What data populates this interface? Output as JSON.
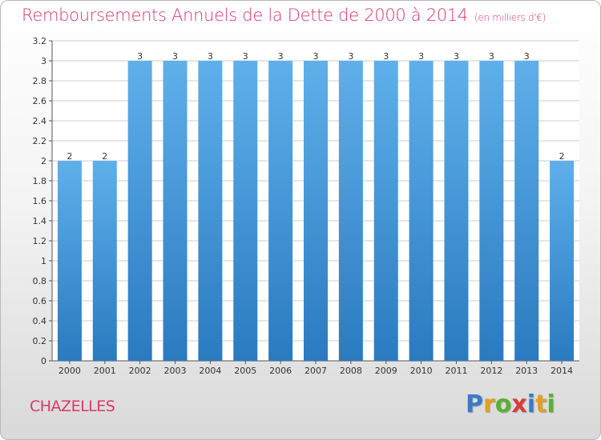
{
  "header": {
    "title": "Remboursements Annuels de la Dette de 2000 à 2014",
    "subtitle": "(en milliers d'€)"
  },
  "commune": "CHAZELLES",
  "logo_text": "Proxiti",
  "colors": {
    "title": "#d9386a",
    "bar_top": "#5eb0ea",
    "bar_bottom": "#2a7ac0",
    "grid": "#cccccc"
  },
  "chart_data": {
    "type": "bar",
    "title": "Remboursements Annuels de la Dette de 2000 à 2014",
    "categories": [
      "2000",
      "2001",
      "2002",
      "2003",
      "2004",
      "2005",
      "2006",
      "2007",
      "2008",
      "2009",
      "2010",
      "2011",
      "2012",
      "2013",
      "2014"
    ],
    "values": [
      2,
      2,
      3,
      3,
      3,
      3,
      3,
      3,
      3,
      3,
      3,
      3,
      3,
      3,
      2
    ],
    "data_labels": [
      "2",
      "2",
      "3",
      "3",
      "3",
      "3",
      "3",
      "3",
      "3",
      "3",
      "3",
      "3",
      "3",
      "3",
      "2"
    ],
    "ylim": [
      0,
      3.2
    ],
    "yticks": [
      {
        "value": 0,
        "label": "0"
      },
      {
        "value": 0.2,
        "label": "0.2"
      },
      {
        "value": 0.4,
        "label": "0.4"
      },
      {
        "value": 0.6,
        "label": "0.6"
      },
      {
        "value": 0.8,
        "label": "0.8"
      },
      {
        "value": 1,
        "label": "1"
      },
      {
        "value": 1.2,
        "label": "1.2"
      },
      {
        "value": 1.4,
        "label": "1.4"
      },
      {
        "value": 1.6,
        "label": "1.6"
      },
      {
        "value": 1.8,
        "label": "1.8"
      },
      {
        "value": 2,
        "label": "2"
      },
      {
        "value": 2.2,
        "label": "2.2"
      },
      {
        "value": 2.4,
        "label": "2.4"
      },
      {
        "value": 2.6,
        "label": "2.6"
      },
      {
        "value": 2.8,
        "label": "2.8"
      },
      {
        "value": 3,
        "label": "3"
      },
      {
        "value": 3.2,
        "label": "3.2"
      }
    ],
    "xlabel": "",
    "ylabel": "",
    "grid": true
  }
}
